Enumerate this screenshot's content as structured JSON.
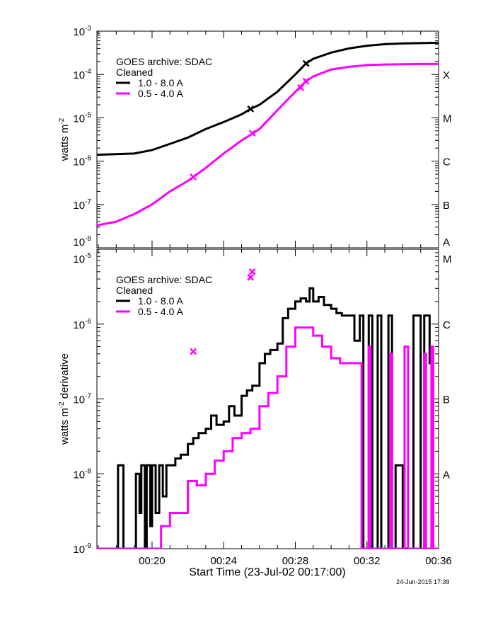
{
  "chart_data": [
    {
      "type": "line",
      "panel": "top",
      "ylabel": "watts m",
      "ylabel_sup": "-2",
      "yscale": "log",
      "ylim": [
        1e-08,
        0.001
      ],
      "yticks": [
        {
          "base": "10",
          "exp": "-3",
          "v": 0.001
        },
        {
          "base": "10",
          "exp": "-4",
          "v": 0.0001
        },
        {
          "base": "10",
          "exp": "-5",
          "v": 1e-05
        },
        {
          "base": "10",
          "exp": "-6",
          "v": 1e-06
        },
        {
          "base": "10",
          "exp": "-7",
          "v": 1e-07
        },
        {
          "base": "10",
          "exp": "-8",
          "v": 1e-08
        }
      ],
      "right_labels": [
        {
          "t": "X",
          "v": 0.0001
        },
        {
          "t": "M",
          "v": 1e-05
        },
        {
          "t": "C",
          "v": 1e-06
        },
        {
          "t": "B",
          "v": 1e-07
        },
        {
          "t": "A",
          "v": 1e-08
        }
      ],
      "legend": {
        "title": "GOES archive: SDAC",
        "subtitle": "Cleaned",
        "placement": "top-left"
      },
      "series": [
        {
          "name": "1.0 - 8.0 A",
          "color": "#000000",
          "x": [
            16.92,
            19,
            20,
            21,
            22,
            23,
            24,
            25,
            25.5,
            26,
            27,
            28,
            28.6,
            29,
            30,
            31,
            32,
            33,
            34,
            35,
            36
          ],
          "y": [
            1.4e-06,
            1.5e-06,
            1.8e-06,
            2.5e-06,
            3.5e-06,
            5.5e-06,
            8e-06,
            1.2e-05,
            1.6e-05,
            2e-05,
            4e-05,
            0.0001,
            0.00018,
            0.00023,
            0.00032,
            0.0004,
            0.00046,
            0.0005,
            0.00052,
            0.00053,
            0.00054
          ],
          "markers": [
            [
              25.5,
              1.6e-05
            ],
            [
              28.6,
              0.00018
            ]
          ]
        },
        {
          "name": "0.5 - 4.0 A",
          "color": "#ff00ff",
          "x": [
            16.92,
            18,
            19,
            20,
            21,
            22,
            22.3,
            23,
            24,
            25,
            25.6,
            26,
            27,
            28,
            28.6,
            29,
            30,
            31,
            32,
            33,
            34,
            35,
            36
          ],
          "y": [
            3.3e-08,
            4e-08,
            6e-08,
            1e-07,
            2e-07,
            3.5e-07,
            4.3e-07,
            7e-07,
            1.5e-06,
            3e-06,
            4.3e-06,
            5.5e-06,
            1.5e-05,
            4e-05,
            7e-05,
            9e-05,
            0.00013,
            0.00015,
            0.000165,
            0.00017,
            0.000172,
            0.000175,
            0.000175
          ],
          "markers": [
            [
              22.3,
              4.3e-07
            ],
            [
              25.6,
              4.4e-06
            ],
            [
              28.3,
              5e-05
            ],
            [
              28.6,
              7e-05
            ]
          ]
        }
      ]
    },
    {
      "type": "line",
      "panel": "bottom",
      "ylabel": "watts m",
      "ylabel_sup": "-2",
      "ylabel_suffix": " derivative",
      "yscale": "log",
      "ylim": [
        1e-09,
        1e-05
      ],
      "yticks": [
        {
          "base": "10",
          "exp": "-5",
          "v": 1e-05
        },
        {
          "base": "10",
          "exp": "-6",
          "v": 1e-06
        },
        {
          "base": "10",
          "exp": "-7",
          "v": 1e-07
        },
        {
          "base": "10",
          "exp": "-8",
          "v": 1e-08
        },
        {
          "base": "10",
          "exp": "-9",
          "v": 1e-09
        }
      ],
      "right_labels": [
        {
          "t": "M",
          "v": 1e-05
        },
        {
          "t": "C",
          "v": 1e-06
        },
        {
          "t": "B",
          "v": 1e-07
        },
        {
          "t": "A",
          "v": 1e-08
        }
      ],
      "legend": {
        "title": "GOES archive: SDAC",
        "subtitle": "Cleaned",
        "placement": "top-left"
      },
      "xlabel": "Start Time (23-Jul-02 00:17:00)",
      "xlim": [
        16.92,
        36
      ],
      "xticks": [
        {
          "t": "00:20",
          "v": 20
        },
        {
          "t": "00:24",
          "v": 24
        },
        {
          "t": "00:28",
          "v": 28
        },
        {
          "t": "00:32",
          "v": 32
        },
        {
          "t": "00:36",
          "v": 36
        }
      ],
      "series": [
        {
          "name": "1.0 - 8.0 A",
          "color": "#000000",
          "step": true,
          "x": [
            16.92,
            18.0,
            18.1,
            18.3,
            18.4,
            19.0,
            19.1,
            19.3,
            19.4,
            19.6,
            19.7,
            19.9,
            20.0,
            20.2,
            20.4,
            20.6,
            20.8,
            21.0,
            21.3,
            21.6,
            22.0,
            22.3,
            22.6,
            23.0,
            23.3,
            23.6,
            24.0,
            24.3,
            24.6,
            25.0,
            25.3,
            25.6,
            26.0,
            26.3,
            26.6,
            27.0,
            27.3,
            27.6,
            28.0,
            28.3,
            28.6,
            28.8,
            29.0,
            29.3,
            29.6,
            30.0,
            30.3,
            30.6,
            31.0,
            31.3,
            31.6,
            31.8,
            32.1,
            32.3,
            32.6,
            32.8,
            33.2,
            33.4,
            33.6,
            34.0,
            34.3,
            34.6,
            35.0,
            35.2,
            35.5,
            35.7,
            36.0
          ],
          "y": [
            1e-09,
            1e-09,
            1.3e-08,
            1.3e-08,
            1e-09,
            1e-09,
            1e-08,
            3e-09,
            1.3e-08,
            1e-09,
            1.3e-08,
            2e-09,
            1.3e-08,
            3e-09,
            1.3e-08,
            5e-09,
            1.3e-08,
            1.3e-08,
            1.6e-08,
            1.8e-08,
            2.5e-08,
            3e-08,
            3.5e-08,
            4e-08,
            6e-08,
            4.5e-08,
            5e-08,
            8e-08,
            6e-08,
            1.1e-07,
            1.3e-07,
            1.5e-07,
            3e-07,
            4e-07,
            4.5e-07,
            5.5e-07,
            1.2e-06,
            1.6e-06,
            2e-06,
            2.2e-06,
            2e-06,
            3e-06,
            2e-06,
            2.3e-06,
            1.8e-06,
            1.6e-06,
            1.4e-06,
            1.3e-06,
            1.3e-06,
            6e-07,
            1.3e-06,
            1e-09,
            1.3e-06,
            1e-09,
            1.3e-06,
            1e-09,
            1.3e-06,
            1e-09,
            1.3e-08,
            1e-09,
            1e-09,
            1.3e-06,
            1e-09,
            1.3e-06,
            3e-07,
            1e-09,
            1e-09
          ]
        },
        {
          "name": "0.5 - 4.0 A",
          "color": "#ff00ff",
          "step": true,
          "x": [
            16.92,
            19.2,
            20.0,
            20.5,
            21.0,
            21.5,
            22.0,
            22.5,
            23.0,
            23.5,
            24.0,
            24.5,
            25.0,
            25.5,
            26.0,
            26.5,
            27.0,
            27.5,
            28.0,
            28.5,
            29.0,
            29.5,
            30.0,
            30.5,
            31.0,
            31.5,
            31.6,
            31.7,
            32.0,
            32.1,
            32.2,
            33.2,
            33.3,
            33.4,
            34.0,
            34.1,
            34.3,
            35.2,
            35.3,
            35.6,
            35.7,
            36.0
          ],
          "y": [
            1e-09,
            1e-09,
            1e-09,
            2e-09,
            3e-09,
            3e-09,
            8e-09,
            7e-09,
            1e-08,
            1.5e-08,
            2e-08,
            3e-08,
            3.5e-08,
            4e-08,
            8e-08,
            1.2e-07,
            2e-07,
            5e-07,
            9e-07,
            9e-07,
            7e-07,
            5e-07,
            3.5e-07,
            3e-07,
            3e-07,
            3e-07,
            3e-07,
            1e-09,
            1e-09,
            5e-07,
            1e-09,
            1e-09,
            4e-07,
            1e-09,
            1e-09,
            5e-07,
            1e-09,
            4e-07,
            1e-09,
            5e-07,
            1e-09,
            1e-09
          ],
          "markers": [
            [
              22.3,
              4.3e-07
            ],
            [
              25.5,
              4.2e-06
            ],
            [
              25.6,
              5e-06
            ]
          ]
        }
      ]
    }
  ],
  "timestamp": "24-Jun-2015 17:39"
}
